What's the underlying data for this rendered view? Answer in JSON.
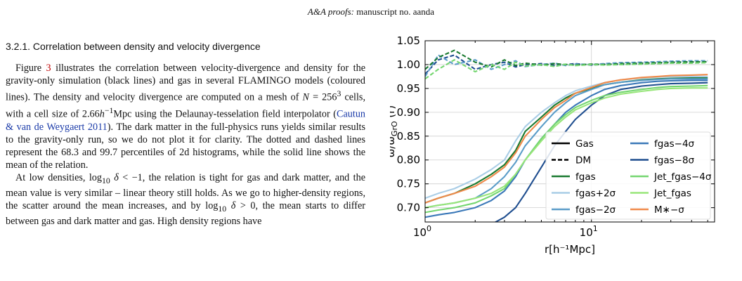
{
  "header": {
    "journal": "A&A proofs:",
    "rest": " manuscript no. aanda"
  },
  "section": {
    "title": "3.2.1. Correlation between density and velocity divergence"
  },
  "para1": {
    "t1": "Figure ",
    "figref": "3",
    "t2": " illustrates the correlation between velocity-divergence and density for the gravity-only simulation (black lines) and gas in several FLAMINGO models (coloured lines). The density and velocity divergence are computed on a mesh of ",
    "n_var": "N",
    "t3": " = 256",
    "cube": "3",
    "t4": " cells, with a cell size of 2.66",
    "h_var": "h",
    "hexp": "−1",
    "t5": "Mpc using the Delaunay-tesselation field interpolator (",
    "cite": "Cautun & van de Weygaert 2011",
    "t6": "). The dark matter in the full-physics runs yields similar results to the gravity-only run, so we do not plot it for clarity. The dotted and dashed lines represent the 68.3 and 99.7 percentiles of 2d histograms, while the solid line shows the mean of the relation."
  },
  "para2": {
    "t1": "At low densities, log",
    "sub1": "10",
    "delta1": " δ",
    "t2": " < −1, the relation is tight for gas and dark matter, and the mean value is very similar – linear theory still holds. As we go to higher-density regions, the scatter around the mean increases, and by log",
    "sub2": "10",
    "delta2": " δ",
    "t3": " > 0, the mean starts to differ between gas and dark matter and gas. High density regions have"
  },
  "chart_data": {
    "type": "line",
    "xlabel": "r[h⁻¹Mpc]",
    "ylabel": "ω/ω_GrO (r)",
    "xscale": "log",
    "xlim": [
      1,
      55
    ],
    "ylim": [
      0.67,
      1.05
    ],
    "xticks": [
      {
        "value": 1,
        "base": "10",
        "exp": "0"
      },
      {
        "value": 10,
        "base": "10",
        "exp": "1"
      }
    ],
    "yticks": [
      "0.70",
      "0.75",
      "0.80",
      "0.85",
      "0.90",
      "0.95",
      "1.00",
      "1.05"
    ],
    "grid": true,
    "legend_position": "lower-right",
    "legend": [
      {
        "label": "Gas",
        "style": "solid",
        "color": "#000000"
      },
      {
        "label": "DM",
        "style": "dashed",
        "color": "#000000"
      },
      {
        "label": "fgas",
        "style": "solid",
        "color": "#1a7a30"
      },
      {
        "label": "fgas+2σ",
        "style": "solid",
        "color": "#a9cde6"
      },
      {
        "label": "fgas−2σ",
        "style": "solid",
        "color": "#5a9cc8"
      },
      {
        "label": "fgas−4σ",
        "style": "solid",
        "color": "#3a78b8"
      },
      {
        "label": "fgas−8σ",
        "style": "solid",
        "color": "#1f4e8f"
      },
      {
        "label": "Jet_fgas−4σ",
        "style": "solid",
        "color": "#74d670"
      },
      {
        "label": "Jet_fgas",
        "style": "solid",
        "color": "#98e67a"
      },
      {
        "label": "M∗−σ",
        "style": "solid",
        "color": "#f08a4a"
      }
    ],
    "x": [
      1.0,
      1.2,
      1.5,
      2.0,
      2.5,
      3.0,
      3.5,
      4.0,
      5.0,
      6.0,
      7.0,
      8.0,
      10.0,
      12.0,
      15.0,
      20.0,
      25.0,
      30.0,
      40.0,
      50.0
    ],
    "series": [
      {
        "label": "fgas+2σ",
        "color": "#a9cde6",
        "style": "solid",
        "values": [
          0.72,
          0.73,
          0.74,
          0.76,
          0.78,
          0.8,
          0.84,
          0.87,
          0.9,
          0.92,
          0.935,
          0.945,
          0.955,
          0.962,
          0.968,
          0.972,
          0.974,
          0.975,
          0.975,
          0.975
        ]
      },
      {
        "label": "fgas",
        "color": "#1a7a30",
        "style": "solid",
        "values": [
          0.71,
          0.72,
          0.73,
          0.75,
          0.77,
          0.79,
          0.82,
          0.86,
          0.89,
          0.915,
          0.93,
          0.94,
          0.95,
          0.958,
          0.963,
          0.968,
          0.97,
          0.971,
          0.972,
          0.972
        ]
      },
      {
        "label": "M∗−σ",
        "color": "#f08a4a",
        "style": "solid",
        "values": [
          0.71,
          0.72,
          0.73,
          0.745,
          0.765,
          0.785,
          0.815,
          0.85,
          0.885,
          0.91,
          0.925,
          0.94,
          0.952,
          0.962,
          0.968,
          0.973,
          0.975,
          0.977,
          0.978,
          0.979
        ]
      },
      {
        "label": "fgas−2σ",
        "color": "#5a9cc8",
        "style": "solid",
        "values": [
          0.7,
          0.705,
          0.71,
          0.72,
          0.74,
          0.765,
          0.795,
          0.83,
          0.87,
          0.9,
          0.92,
          0.935,
          0.948,
          0.958,
          0.963,
          0.967,
          0.969,
          0.97,
          0.97,
          0.97
        ]
      },
      {
        "label": "fgas−4σ",
        "color": "#3a78b8",
        "style": "solid",
        "values": [
          0.68,
          0.685,
          0.69,
          0.7,
          0.715,
          0.735,
          0.765,
          0.8,
          0.845,
          0.875,
          0.9,
          0.915,
          0.935,
          0.948,
          0.956,
          0.962,
          0.965,
          0.966,
          0.967,
          0.967
        ]
      },
      {
        "label": "fgas−8σ",
        "color": "#1f4e8f",
        "style": "solid",
        "values": [
          0.64,
          0.645,
          0.65,
          0.655,
          0.665,
          0.68,
          0.7,
          0.73,
          0.785,
          0.83,
          0.86,
          0.885,
          0.915,
          0.935,
          0.948,
          0.955,
          0.958,
          0.96,
          0.961,
          0.962
        ]
      },
      {
        "label": "Jet_fgas−4σ",
        "color": "#74d670",
        "style": "solid",
        "values": [
          0.69,
          0.695,
          0.7,
          0.71,
          0.725,
          0.74,
          0.77,
          0.8,
          0.845,
          0.875,
          0.895,
          0.91,
          0.925,
          0.935,
          0.942,
          0.948,
          0.952,
          0.954,
          0.955,
          0.956
        ]
      },
      {
        "label": "Jet_fgas",
        "color": "#98e67a",
        "style": "solid",
        "values": [
          0.7,
          0.705,
          0.71,
          0.72,
          0.73,
          0.745,
          0.77,
          0.8,
          0.84,
          0.87,
          0.89,
          0.905,
          0.92,
          0.93,
          0.938,
          0.944,
          0.948,
          0.95,
          0.951,
          0.951
        ]
      },
      {
        "label": "DM",
        "color": "#1f4e8f",
        "style": "dashed",
        "values": [
          0.98,
          1.01,
          1.02,
          0.99,
          1.0,
          1.005,
          0.995,
          1.0,
          1.002,
          0.998,
          1.0,
          1.002,
          0.999,
          1.001,
          1.0,
          1.002,
          1.003,
          1.004,
          1.005,
          1.006
        ]
      },
      {
        "label": "DM",
        "color": "#5a9cc8",
        "style": "dashed",
        "values": [
          0.975,
          1.02,
          1.0,
          1.01,
          0.99,
          1.0,
          1.008,
          0.996,
          1.0,
          1.003,
          0.998,
          1.001,
          1.0,
          1.002,
          1.004,
          1.005,
          1.006,
          1.007,
          1.008,
          1.008
        ]
      },
      {
        "label": "DM",
        "color": "#1a7a30",
        "style": "dashed",
        "values": [
          0.99,
          1.015,
          1.03,
          1.005,
          0.995,
          1.01,
          0.998,
          1.003,
          0.999,
          1.002,
          1.0,
          0.999,
          1.001,
          1.0,
          1.002,
          1.003,
          1.004,
          1.005,
          1.006,
          1.006
        ]
      },
      {
        "label": "DM",
        "color": "#74d670",
        "style": "dashed",
        "values": [
          0.97,
          0.99,
          1.01,
          0.985,
          1.0,
          0.99,
          1.005,
          0.997,
          1.0,
          0.996,
          1.001,
          0.998,
          1.0,
          0.999,
          1.0,
          1.001,
          1.002,
          1.003,
          1.003,
          1.004
        ]
      }
    ]
  }
}
